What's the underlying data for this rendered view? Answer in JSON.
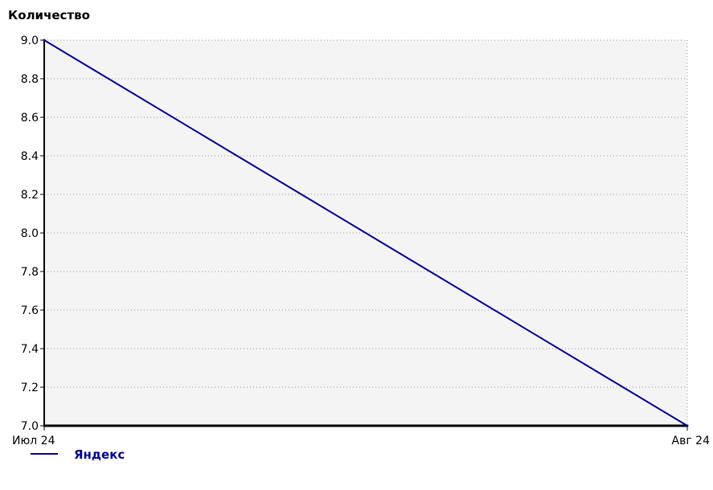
{
  "chart_data": {
    "type": "line",
    "ylabel": "Количество",
    "xlabel": "",
    "categories": [
      "Июл 24",
      "Авг 24"
    ],
    "yticks": [
      "7.0",
      "7.2",
      "7.4",
      "7.6",
      "7.8",
      "8.0",
      "8.2",
      "8.4",
      "8.6",
      "8.8",
      "9.0"
    ],
    "ylim": [
      7.0,
      9.0
    ],
    "grid": true,
    "legend_position": "bottom-left",
    "series": [
      {
        "name": "Яндекс",
        "values": [
          9.0,
          7.0
        ]
      }
    ],
    "colors": {
      "series": "#000099",
      "plot_background": "#f4f4f4",
      "grid": "#999999",
      "axis": "#000000"
    }
  }
}
